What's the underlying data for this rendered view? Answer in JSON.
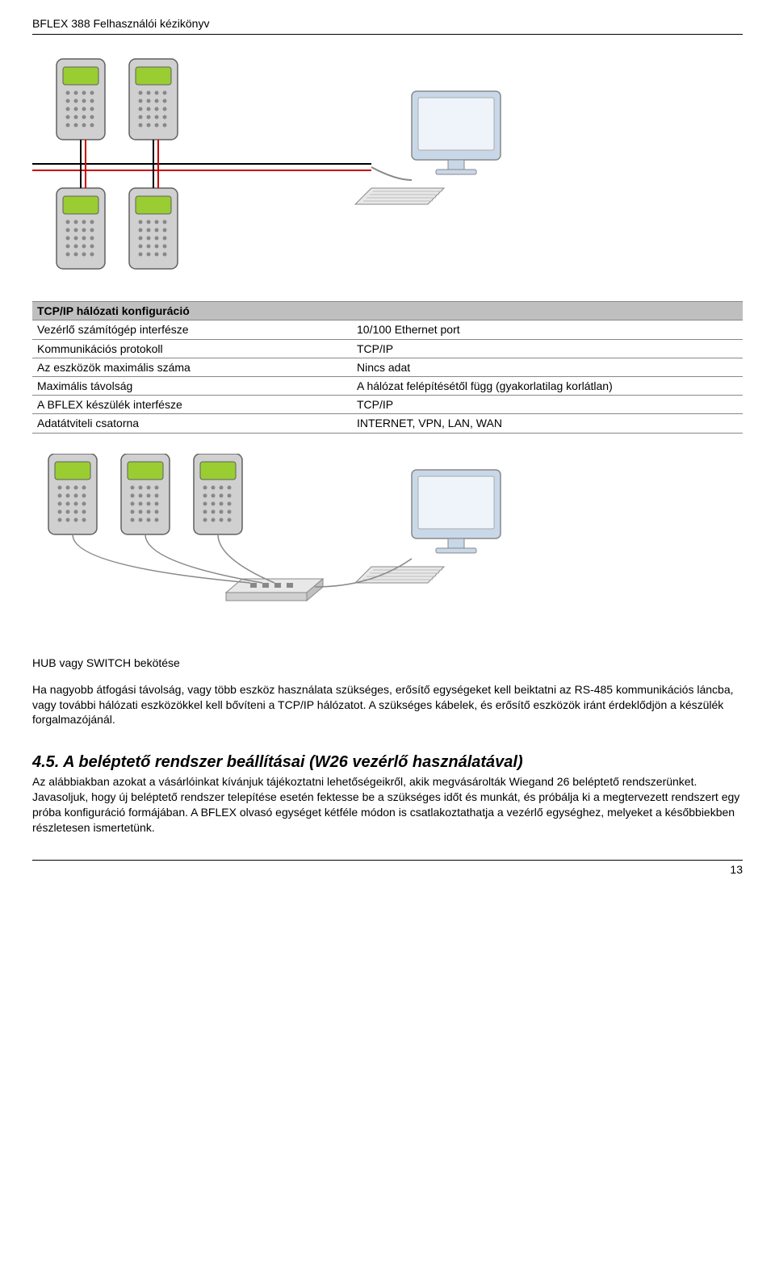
{
  "header": {
    "title": "BFLEX 388 Felhasználói kézikönyv"
  },
  "diagram1": {
    "device_screen_color": "#9acd32",
    "device_body_color": "#d0d0d0",
    "device_border_color": "#606060",
    "bus_color_black": "#000000",
    "bus_color_red": "#cc0000",
    "monitor_color": "#c8d8e8",
    "keyboard_color": "#e8e8e8"
  },
  "table1": {
    "header": "TCP/IP hálózati konfiguráció",
    "rows": [
      [
        "Vezérlő számítógép interfésze",
        "10/100 Ethernet port"
      ],
      [
        "Kommunikációs protokoll",
        "TCP/IP"
      ],
      [
        "Az eszközök maximális száma",
        "Nincs adat"
      ],
      [
        "Maximális távolság",
        "A hálózat felépítésétől függ (gyakorlatilag korlátlan)"
      ],
      [
        "A BFLEX készülék interfésze",
        "TCP/IP"
      ],
      [
        "Adatátviteli csatorna",
        "INTERNET, VPN, LAN, WAN"
      ]
    ]
  },
  "caption2": "HUB vagy SWITCH bekötése",
  "para1": "Ha nagyobb átfogási távolság, vagy több eszköz használata szükséges, erősítő egységeket kell beiktatni az RS-485 kommunikációs láncba, vagy további hálózati eszközökkel kell bővíteni a TCP/IP hálózatot. A szükséges kábelek, és erősítő eszközök iránt érdeklődjön a készülék forgalmazójánál.",
  "section45": {
    "title": "4.5. A beléptető rendszer beállításai (W26 vezérlő használatával)",
    "body": "Az alábbiakban azokat a vásárlóinkat kívánjuk tájékoztatni lehetőségeikről, akik megvásárolták Wiegand 26 beléptető rendszerünket.\nJavasoljuk, hogy új beléptető rendszer telepítése esetén fektesse be a szükséges időt és munkát, és próbálja ki a megtervezett rendszert egy próba konfiguráció formájában. A BFLEX olvasó egységet kétféle módon is csatlakoztathatja a vezérlő egységhez, melyeket a későbbiekben részletesen ismertetünk."
  },
  "page_number": "13"
}
